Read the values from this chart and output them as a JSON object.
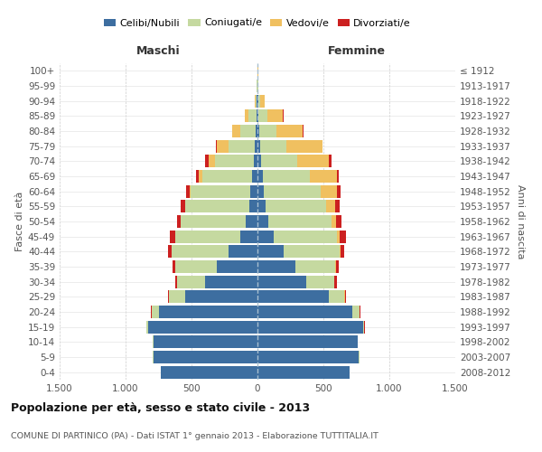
{
  "age_groups": [
    "0-4",
    "5-9",
    "10-14",
    "15-19",
    "20-24",
    "25-29",
    "30-34",
    "35-39",
    "40-44",
    "45-49",
    "50-54",
    "55-59",
    "60-64",
    "65-69",
    "70-74",
    "75-79",
    "80-84",
    "85-89",
    "90-94",
    "95-99",
    "100+"
  ],
  "birth_years": [
    "2008-2012",
    "2003-2007",
    "1998-2002",
    "1993-1997",
    "1988-1992",
    "1983-1987",
    "1978-1982",
    "1973-1977",
    "1968-1972",
    "1963-1967",
    "1958-1962",
    "1953-1957",
    "1948-1952",
    "1943-1947",
    "1938-1942",
    "1933-1937",
    "1928-1932",
    "1923-1927",
    "1918-1922",
    "1913-1917",
    "≤ 1912"
  ],
  "male": {
    "celibi": [
      730,
      790,
      790,
      830,
      750,
      550,
      400,
      310,
      220,
      130,
      90,
      65,
      55,
      40,
      30,
      20,
      12,
      8,
      4,
      2,
      2
    ],
    "coniugati": [
      1,
      2,
      2,
      10,
      50,
      120,
      210,
      310,
      430,
      490,
      490,
      480,
      450,
      380,
      290,
      200,
      120,
      60,
      12,
      3,
      1
    ],
    "vedovi": [
      0,
      0,
      0,
      0,
      1,
      1,
      1,
      2,
      2,
      2,
      3,
      5,
      10,
      25,
      50,
      90,
      60,
      25,
      5,
      1,
      0
    ],
    "divorziati": [
      0,
      0,
      0,
      2,
      5,
      10,
      15,
      20,
      25,
      40,
      30,
      30,
      25,
      20,
      30,
      5,
      3,
      2,
      0,
      0,
      0
    ]
  },
  "female": {
    "nubili": [
      700,
      770,
      760,
      800,
      720,
      540,
      370,
      290,
      200,
      120,
      80,
      60,
      50,
      40,
      30,
      20,
      15,
      10,
      5,
      2,
      2
    ],
    "coniugate": [
      1,
      2,
      2,
      10,
      55,
      120,
      210,
      300,
      420,
      480,
      480,
      460,
      430,
      360,
      270,
      200,
      130,
      65,
      15,
      3,
      1
    ],
    "vedove": [
      0,
      0,
      0,
      1,
      2,
      3,
      5,
      8,
      10,
      20,
      35,
      70,
      120,
      200,
      240,
      270,
      200,
      120,
      35,
      5,
      1
    ],
    "divorziate": [
      0,
      0,
      0,
      2,
      5,
      8,
      15,
      20,
      30,
      50,
      40,
      35,
      30,
      15,
      20,
      5,
      3,
      2,
      0,
      0,
      0
    ]
  },
  "colors": {
    "celibi": "#3d6ea0",
    "coniugati": "#c5d9a0",
    "vedovi": "#f0c060",
    "divorziati": "#cc2020"
  },
  "xlim": 1500,
  "title": "Popolazione per età, sesso e stato civile - 2013",
  "subtitle": "COMUNE DI PARTINICO (PA) - Dati ISTAT 1° gennaio 2013 - Elaborazione TUTTITALIA.IT",
  "ylabel": "Fasce di età",
  "ylabel2": "Anni di nascita"
}
